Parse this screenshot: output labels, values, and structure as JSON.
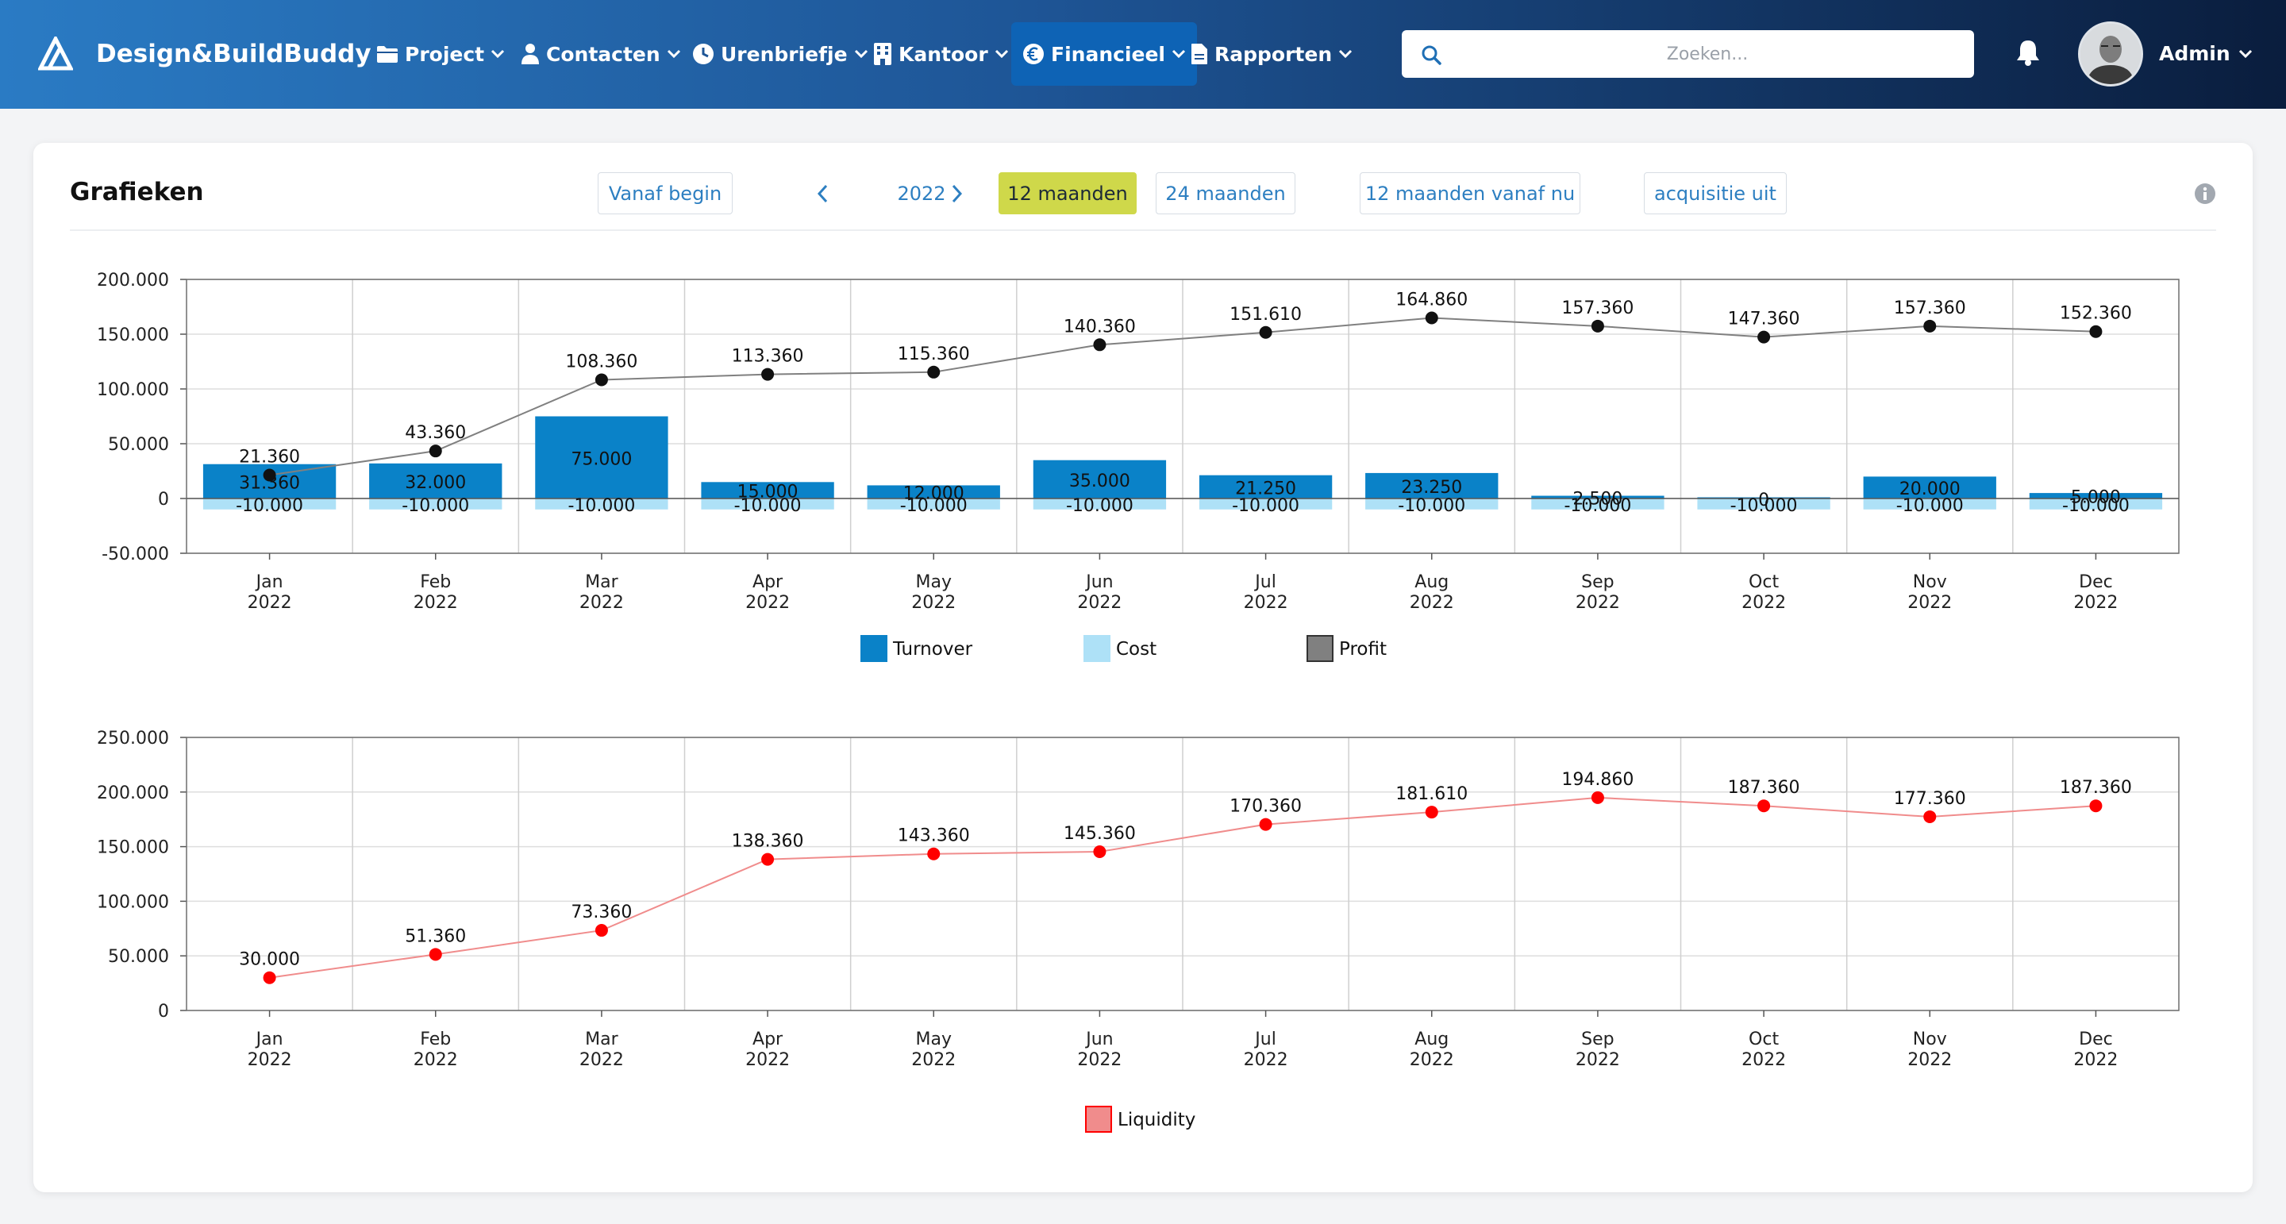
{
  "nav": {
    "brand": "Design&BuildBuddy",
    "items": [
      {
        "label": "Project",
        "icon": "folder-icon"
      },
      {
        "label": "Contacten",
        "icon": "user-icon"
      },
      {
        "label": "Urenbriefje",
        "icon": "clock-icon"
      },
      {
        "label": "Kantoor",
        "icon": "building-icon"
      },
      {
        "label": "Financieel",
        "icon": "euro-icon",
        "active": true
      },
      {
        "label": "Rapporten",
        "icon": "document-icon"
      }
    ],
    "search_placeholder": "Zoeken...",
    "user": "Admin"
  },
  "card": {
    "title": "Grafieken",
    "from_start": "Vanaf begin",
    "year": "2022",
    "period_12": "12 maanden",
    "period_24": "24 maanden",
    "from_now": "12 maanden vanaf nu",
    "acquisition": "acquisitie uit"
  },
  "colors": {
    "turnover": "#0a82c8",
    "cost": "#aee1f7",
    "profit": "#808080",
    "liquidity": "#f08c8c",
    "liquidity_point": "#ff0000",
    "active_button": "#cfd84a"
  },
  "chart_data": [
    {
      "type": "bar",
      "categories": [
        "Jan 2022",
        "Feb 2022",
        "Mar 2022",
        "Apr 2022",
        "May 2022",
        "Jun 2022",
        "Jul 2022",
        "Aug 2022",
        "Sep 2022",
        "Oct 2022",
        "Nov 2022",
        "Dec 2022"
      ],
      "category_lines": [
        [
          "Jan",
          "2022"
        ],
        [
          "Feb",
          "2022"
        ],
        [
          "Mar",
          "2022"
        ],
        [
          "Apr",
          "2022"
        ],
        [
          "May",
          "2022"
        ],
        [
          "Jun",
          "2022"
        ],
        [
          "Jul",
          "2022"
        ],
        [
          "Aug",
          "2022"
        ],
        [
          "Sep",
          "2022"
        ],
        [
          "Oct",
          "2022"
        ],
        [
          "Nov",
          "2022"
        ],
        [
          "Dec",
          "2022"
        ]
      ],
      "series": [
        {
          "name": "Turnover",
          "kind": "bar",
          "values": [
            31360,
            32000,
            75000,
            15000,
            12000,
            35000,
            21250,
            23250,
            2500,
            0,
            20000,
            5000
          ],
          "labels": [
            "31.360",
            "32.000",
            "75.000",
            "15.000",
            "12.000",
            "35.000",
            "21.250",
            "23.250",
            "2.500",
            "0",
            "20.000",
            "5.000"
          ]
        },
        {
          "name": "Cost",
          "kind": "bar",
          "values": [
            -10000,
            -10000,
            -10000,
            -10000,
            -10000,
            -10000,
            -10000,
            -10000,
            -10000,
            -10000,
            -10000,
            -10000
          ],
          "labels": [
            "-10.000",
            "-10.000",
            "-10.000",
            "-10.000",
            "-10.000",
            "-10.000",
            "-10.000",
            "-10.000",
            "-10.000",
            "-10.000",
            "-10.000",
            "-10.000"
          ]
        },
        {
          "name": "Profit",
          "kind": "line",
          "values": [
            21360,
            43360,
            108360,
            113360,
            115360,
            140360,
            151610,
            164860,
            157360,
            147360,
            157360,
            152360
          ],
          "labels": [
            "21.360",
            "43.360",
            "108.360",
            "113.360",
            "115.360",
            "140.360",
            "151.610",
            "164.860",
            "157.360",
            "147.360",
            "157.360",
            "152.360"
          ]
        }
      ],
      "ylim": [
        -50000,
        200000
      ],
      "yticks": [
        200000,
        150000,
        100000,
        50000,
        0,
        -50000
      ],
      "ytick_labels": [
        "200.000",
        "150.000",
        "100.000",
        "50.000",
        "0",
        "-50.000"
      ],
      "grid": true,
      "legend": "bottom-center"
    },
    {
      "type": "line",
      "categories": [
        "Jan 2022",
        "Feb 2022",
        "Mar 2022",
        "Apr 2022",
        "May 2022",
        "Jun 2022",
        "Jul 2022",
        "Aug 2022",
        "Sep 2022",
        "Oct 2022",
        "Nov 2022",
        "Dec 2022"
      ],
      "category_lines": [
        [
          "Jan",
          "2022"
        ],
        [
          "Feb",
          "2022"
        ],
        [
          "Mar",
          "2022"
        ],
        [
          "Apr",
          "2022"
        ],
        [
          "May",
          "2022"
        ],
        [
          "Jun",
          "2022"
        ],
        [
          "Jul",
          "2022"
        ],
        [
          "Aug",
          "2022"
        ],
        [
          "Sep",
          "2022"
        ],
        [
          "Oct",
          "2022"
        ],
        [
          "Nov",
          "2022"
        ],
        [
          "Dec",
          "2022"
        ]
      ],
      "series": [
        {
          "name": "Liquidity",
          "kind": "line",
          "values": [
            30000,
            51360,
            73360,
            138360,
            143360,
            145360,
            170360,
            181610,
            194860,
            187360,
            177360,
            187360
          ],
          "labels": [
            "30.000",
            "51.360",
            "73.360",
            "138.360",
            "143.360",
            "145.360",
            "170.360",
            "181.610",
            "194.860",
            "187.360",
            "177.360",
            "187.360"
          ]
        }
      ],
      "ylim": [
        0,
        250000
      ],
      "yticks": [
        250000,
        200000,
        150000,
        100000,
        50000,
        0
      ],
      "ytick_labels": [
        "250.000",
        "200.000",
        "150.000",
        "100.000",
        "50.000",
        "0"
      ],
      "grid": true,
      "legend": "bottom-center"
    }
  ]
}
